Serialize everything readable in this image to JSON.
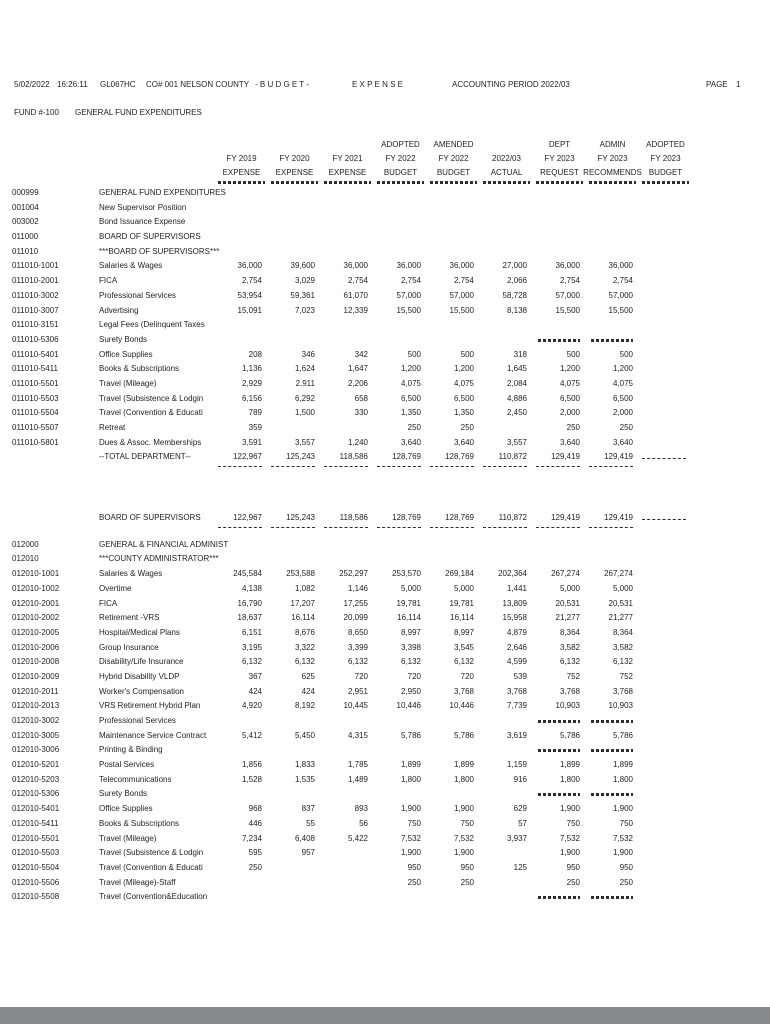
{
  "header": {
    "date": "5/02/2022",
    "time": "16:26:11",
    "program": "GL067HC",
    "company": "CO# 001 NELSON COUNTY",
    "report_type": "- B U D G E T -",
    "section": "E X P E N S E",
    "accounting_period": "ACCOUNTING PERIOD 2022/03",
    "page_label": "PAGE",
    "page_number": "1"
  },
  "fund": {
    "fund_label": "FUND #-100",
    "fund_name": "GENERAL FUND EXPENDITURES"
  },
  "columns": [
    {
      "l1": "",
      "l2": "FY 2019",
      "l3": "EXPENSE"
    },
    {
      "l1": "",
      "l2": "FY 2020",
      "l3": "EXPENSE"
    },
    {
      "l1": "",
      "l2": "FY 2021",
      "l3": "EXPENSE"
    },
    {
      "l1": "ADOPTED",
      "l2": "FY 2022",
      "l3": "BUDGET"
    },
    {
      "l1": "AMENDED",
      "l2": "FY 2022",
      "l3": "BUDGET"
    },
    {
      "l1": "",
      "l2": "2022/03",
      "l3": "ACTUAL"
    },
    {
      "l1": "DEPT",
      "l2": "FY 2023",
      "l3": "REQUEST"
    },
    {
      "l1": "ADMIN",
      "l2": "FY 2023",
      "l3": "RECOMMENDS"
    },
    {
      "l1": "ADOPTED",
      "l2": "FY 2023",
      "l3": "BUDGET"
    }
  ],
  "rows": [
    {
      "code": "000999",
      "desc": "GENERAL FUND EXPENDITURES"
    },
    {
      "code": "001004",
      "desc": "New Supervisor Position"
    },
    {
      "code": "003002",
      "desc": "Bond Issuance Expense"
    },
    {
      "code": "011000",
      "desc": "BOARD OF SUPERVISORS"
    },
    {
      "code": "011010",
      "desc": "***BOARD OF SUPERVISORS***"
    },
    {
      "code": "011010-1001",
      "desc": "Salaries & Wages",
      "vals": [
        "36,000",
        "39,600",
        "36,000",
        "36,000",
        "36,000",
        "27,000",
        "36,000",
        "36,000",
        ""
      ]
    },
    {
      "code": "011010-2001",
      "desc": "FICA",
      "vals": [
        "2,754",
        "3,029",
        "2,754",
        "2,754",
        "2,754",
        "2,066",
        "2,754",
        "2,754",
        ""
      ]
    },
    {
      "code": "011010-3002",
      "desc": "Professional Services",
      "vals": [
        "53,954",
        "59,361",
        "61,070",
        "57,000",
        "57,000",
        "58,728",
        "57,000",
        "57,000",
        ""
      ]
    },
    {
      "code": "011010-3007",
      "desc": "Advertising",
      "vals": [
        "15,091",
        "7,023",
        "12,339",
        "15,500",
        "15,500",
        "8,138",
        "15,500",
        "15,500",
        ""
      ]
    },
    {
      "code": "011010-3151",
      "desc": "Legal Fees (Delinquent Taxes"
    },
    {
      "code": "011010-5306",
      "desc": "Surety Bonds",
      "dash": [
        6,
        7
      ]
    },
    {
      "code": "011010-5401",
      "desc": "Office Supplies",
      "vals": [
        "208",
        "346",
        "342",
        "500",
        "500",
        "318",
        "500",
        "500",
        ""
      ]
    },
    {
      "code": "011010-5411",
      "desc": "Books & Subscriptions",
      "vals": [
        "1,136",
        "1,624",
        "1,647",
        "1,200",
        "1,200",
        "1,645",
        "1,200",
        "1,200",
        ""
      ]
    },
    {
      "code": "011010-5501",
      "desc": "Travel (Mileage)",
      "vals": [
        "2,929",
        "2,911",
        "2,206",
        "4,075",
        "4,075",
        "2,084",
        "4,075",
        "4,075",
        ""
      ]
    },
    {
      "code": "011010-5503",
      "desc": "Travel (Subsistence & Lodgin",
      "vals": [
        "6,156",
        "6,292",
        "658",
        "6,500",
        "6,500",
        "4,886",
        "6,500",
        "6,500",
        ""
      ]
    },
    {
      "code": "011010-5504",
      "desc": "Travel (Convention & Educati",
      "vals": [
        "789",
        "1,500",
        "330",
        "1,350",
        "1,350",
        "2,450",
        "2,000",
        "2,000",
        ""
      ]
    },
    {
      "code": "011010-5507",
      "desc": "Retreat",
      "vals": [
        "359",
        "",
        "",
        "250",
        "250",
        "",
        "250",
        "250",
        ""
      ]
    },
    {
      "code": "011010-5801",
      "desc": "Dues & Assoc. Memberships",
      "vals": [
        "3,591",
        "3,557",
        "1,240",
        "3,640",
        "3,640",
        "3,557",
        "3,640",
        "3,640",
        ""
      ]
    },
    {
      "code": "",
      "desc": "--TOTAL DEPARTMENT--",
      "name": "total-department-row",
      "uline": true,
      "vals": [
        "122,967",
        "125,243",
        "118,586",
        "128,769",
        "128,769",
        "110,872",
        "129,419",
        "129,419",
        ""
      ]
    },
    {
      "gap": 46
    },
    {
      "code": "",
      "desc": "BOARD OF SUPERVISORS",
      "name": "department-summary-row",
      "uline": true,
      "vals": [
        "122,967",
        "125,243",
        "118,586",
        "128,769",
        "128,769",
        "110,872",
        "129,419",
        "129,419",
        ""
      ]
    },
    {
      "gap": 12
    },
    {
      "code": "012000",
      "desc": "GENERAL & FINANCIAL ADMINIST"
    },
    {
      "code": "012010",
      "desc": "***COUNTY ADMINISTRATOR***"
    },
    {
      "code": "012010-1001",
      "desc": "Salaries & Wages",
      "vals": [
        "245,584",
        "253,588",
        "252,297",
        "253,570",
        "269,184",
        "202,364",
        "267,274",
        "267,274",
        ""
      ]
    },
    {
      "code": "012010-1002",
      "desc": "Overtime",
      "vals": [
        "4,138",
        "1,082",
        "1,146",
        "5,000",
        "5,000",
        "1,441",
        "5,000",
        "5,000",
        ""
      ]
    },
    {
      "code": "012010-2001",
      "desc": "FICA",
      "vals": [
        "16,790",
        "17,207",
        "17,255",
        "19,781",
        "19,781",
        "13,809",
        "20,531",
        "20,531",
        ""
      ]
    },
    {
      "code": "012010-2002",
      "desc": "Retirement -VRS",
      "vals": [
        "18,637",
        "16,114",
        "20,099",
        "16,114",
        "16,114",
        "15,958",
        "21,277",
        "21,277",
        ""
      ]
    },
    {
      "code": "012010-2005",
      "desc": "Hospital/Medical Plans",
      "vals": [
        "6,151",
        "8,676",
        "8,650",
        "8,997",
        "8,997",
        "4,879",
        "8,364",
        "8,364",
        ""
      ]
    },
    {
      "code": "012010-2006",
      "desc": "Group Insurance",
      "vals": [
        "3,195",
        "3,322",
        "3,399",
        "3,398",
        "3,545",
        "2,646",
        "3,582",
        "3,582",
        ""
      ]
    },
    {
      "code": "012010-2008",
      "desc": "Disability/Life Insurance",
      "vals": [
        "6,132",
        "6,132",
        "6,132",
        "6,132",
        "6,132",
        "4,599",
        "6,132",
        "6,132",
        ""
      ]
    },
    {
      "code": "012010-2009",
      "desc": "Hybrid Disability VLDP",
      "vals": [
        "367",
        "625",
        "720",
        "720",
        "720",
        "539",
        "752",
        "752",
        ""
      ]
    },
    {
      "code": "012010-2011",
      "desc": "Worker's Compensation",
      "vals": [
        "424",
        "424",
        "2,951",
        "2,950",
        "3,768",
        "3,768",
        "3,768",
        "3,768",
        ""
      ]
    },
    {
      "code": "012010-2013",
      "desc": "VRS Retirement Hybrid Plan",
      "vals": [
        "4,920",
        "8,192",
        "10,445",
        "10,446",
        "10,446",
        "7,739",
        "10,903",
        "10,903",
        ""
      ]
    },
    {
      "code": "012010-3002",
      "desc": "Professional Services",
      "dash": [
        6,
        7
      ]
    },
    {
      "code": "012010-3005",
      "desc": "Maintenance Service Contract",
      "vals": [
        "5,412",
        "5,450",
        "4,315",
        "5,786",
        "5,786",
        "3,619",
        "5,786",
        "5,786",
        ""
      ]
    },
    {
      "code": "012010-3006",
      "desc": "Printing & Binding",
      "dash": [
        6,
        7
      ]
    },
    {
      "code": "012010-5201",
      "desc": "Postal Services",
      "vals": [
        "1,856",
        "1,833",
        "1,785",
        "1,899",
        "1,899",
        "1,159",
        "1,899",
        "1,899",
        ""
      ]
    },
    {
      "code": "012010-5203",
      "desc": "Telecommunications",
      "vals": [
        "1,528",
        "1,535",
        "1,489",
        "1,800",
        "1,800",
        "916",
        "1,800",
        "1,800",
        ""
      ]
    },
    {
      "code": "012010-5306",
      "desc": "Surety Bonds",
      "dash": [
        6,
        7
      ]
    },
    {
      "code": "012010-5401",
      "desc": "Office Supplies",
      "vals": [
        "968",
        "837",
        "893",
        "1,900",
        "1,900",
        "629",
        "1,900",
        "1,900",
        ""
      ]
    },
    {
      "code": "012010-5411",
      "desc": "Books & Subscriptions",
      "vals": [
        "446",
        "55",
        "56",
        "750",
        "750",
        "57",
        "750",
        "750",
        ""
      ]
    },
    {
      "code": "012010-5501",
      "desc": "Travel (Mileage)",
      "vals": [
        "7,234",
        "6,408",
        "5,422",
        "7,532",
        "7,532",
        "3,937",
        "7,532",
        "7,532",
        ""
      ]
    },
    {
      "code": "012010-5503",
      "desc": "Travel (Subsistence & Lodgin",
      "vals": [
        "595",
        "957",
        "",
        "1,900",
        "1,900",
        "",
        "1,900",
        "1,900",
        ""
      ]
    },
    {
      "code": "012010-5504",
      "desc": "Travel (Convention & Educati",
      "vals": [
        "250",
        "",
        "",
        "950",
        "950",
        "125",
        "950",
        "950",
        ""
      ]
    },
    {
      "code": "012010-5506",
      "desc": "Travel (Mileage)-Staff",
      "vals": [
        "",
        "",
        "",
        "250",
        "250",
        "",
        "250",
        "250",
        ""
      ]
    },
    {
      "code": "012010-5508",
      "desc": "Travel (Convention&Education",
      "dash": [
        6,
        7
      ]
    }
  ],
  "colors": {
    "page_bg": "#ffffff",
    "text": "#1f1f1f",
    "viewer_bar": "#85898c"
  }
}
